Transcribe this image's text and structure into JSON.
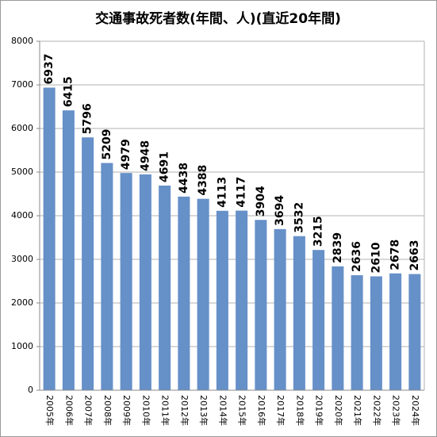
{
  "chart_data": {
    "type": "bar",
    "title": "交通事故死者数(年間、人)(直近20年間)",
    "categories": [
      "2005年",
      "2006年",
      "2007年",
      "2008年",
      "2009年",
      "2010年",
      "2011年",
      "2012年",
      "2013年",
      "2014年",
      "2015年",
      "2016年",
      "2017年",
      "2018年",
      "2019年",
      "2020年",
      "2021年",
      "2022年",
      "2023年",
      "2024年"
    ],
    "values": [
      6937,
      6415,
      5796,
      5209,
      4979,
      4948,
      4691,
      4438,
      4388,
      4113,
      4117,
      3904,
      3694,
      3532,
      3215,
      2839,
      2636,
      2610,
      2678,
      2663
    ],
    "color": "#6690c8",
    "ylim": [
      0,
      8000
    ],
    "yticks": [
      0,
      1000,
      2000,
      3000,
      4000,
      5000,
      6000,
      7000,
      8000
    ],
    "grid": true
  }
}
